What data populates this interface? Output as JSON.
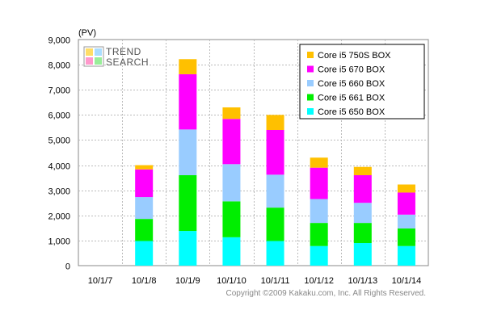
{
  "chart_data": {
    "type": "bar",
    "stacked": true,
    "unit_label": "(PV)",
    "categories": [
      "10/1/7",
      "10/1/8",
      "10/1/9",
      "10/1/10",
      "10/1/11",
      "10/1/12",
      "10/1/13",
      "10/1/14"
    ],
    "series": [
      {
        "name": "Core i5 650 BOX",
        "color": "#00ffff",
        "values": [
          0,
          980,
          1380,
          1130,
          980,
          780,
          900,
          780
        ]
      },
      {
        "name": "Core i5 661 BOX",
        "color": "#00ee00",
        "values": [
          0,
          880,
          2220,
          1430,
          1330,
          920,
          800,
          700
        ]
      },
      {
        "name": "Core i5 660 BOX",
        "color": "#99ccff",
        "values": [
          0,
          870,
          1820,
          1480,
          1310,
          950,
          800,
          550
        ]
      },
      {
        "name": "Core i5 670 BOX",
        "color": "#ff00ff",
        "values": [
          0,
          1100,
          2200,
          1800,
          1780,
          1250,
          1100,
          880
        ]
      },
      {
        "name": "Core i5 750S BOX",
        "color": "#ffc000",
        "values": [
          0,
          170,
          600,
          460,
          600,
          400,
          330,
          320
        ]
      }
    ],
    "legend_order": [
      "Core i5 750S BOX",
      "Core i5 670 BOX",
      "Core i5 660 BOX",
      "Core i5 661 BOX",
      "Core i5 650 BOX"
    ],
    "ylim": [
      0,
      9000
    ],
    "yticks": [
      "0",
      "1,000",
      "2,000",
      "3,000",
      "4,000",
      "5,000",
      "6,000",
      "7,000",
      "8,000",
      "9,000"
    ],
    "grid": true,
    "legend_position": "top-right",
    "logo": {
      "line1": "TREND",
      "line2": "SEARCH"
    },
    "copyright": "Copyright ©2009 Kakaku.com, Inc. All Rights Reserved."
  }
}
